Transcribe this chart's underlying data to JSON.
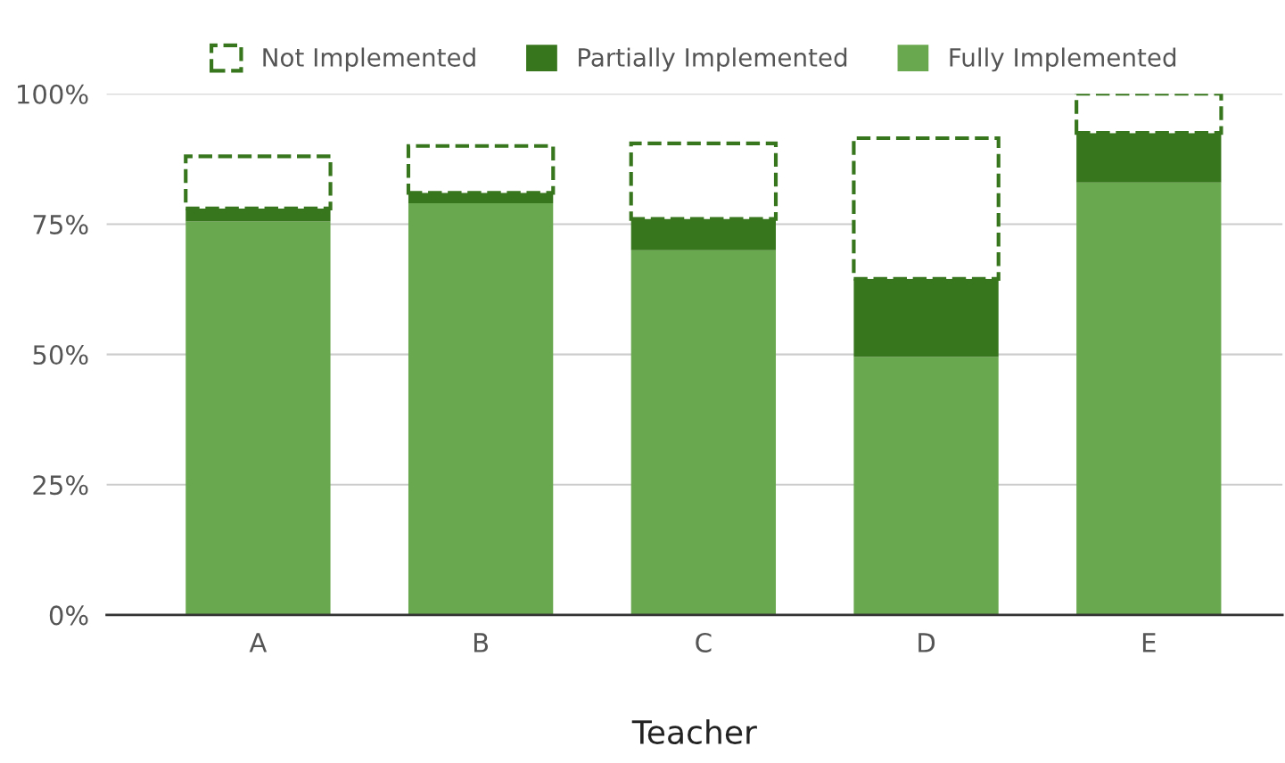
{
  "chart_data": {
    "type": "bar",
    "stacked": true,
    "xlabel": "Teacher",
    "categories": [
      "A",
      "B",
      "C",
      "D",
      "E"
    ],
    "series": [
      {
        "name": "Fully Implemented",
        "color": "#6aa84f",
        "values": [
          75.5,
          79,
          70,
          49.5,
          83
        ]
      },
      {
        "name": "Partially Implemented",
        "color": "#38761d",
        "values": [
          2.5,
          2,
          6,
          15,
          9.5
        ]
      },
      {
        "name": "Not Implemented",
        "color": "#38761d",
        "line_style": "dashed",
        "values": [
          10,
          9,
          14.5,
          27,
          7.5
        ]
      }
    ],
    "ylim": [
      0,
      100
    ],
    "yticks": [
      {
        "value": 0,
        "label": "0%"
      },
      {
        "value": 25,
        "label": "25%"
      },
      {
        "value": 50,
        "label": "50%"
      },
      {
        "value": 75,
        "label": "75%"
      },
      {
        "value": 100,
        "label": "100%"
      }
    ],
    "grid": "y",
    "legend": "top"
  }
}
